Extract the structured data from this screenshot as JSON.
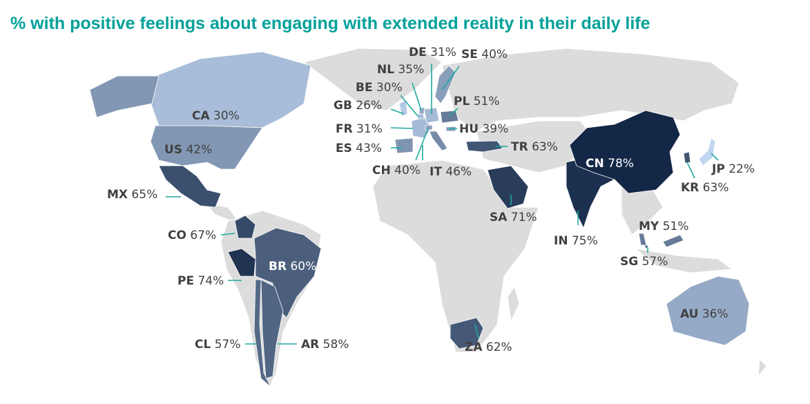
{
  "chart_data": {
    "type": "choropleth",
    "title": "% with positive feelings about engaging with extended reality in their daily life",
    "unit": "%",
    "countries": [
      {
        "code": "CA",
        "value": 30,
        "label": "30%"
      },
      {
        "code": "US",
        "value": 42,
        "label": "42%"
      },
      {
        "code": "MX",
        "value": 65,
        "label": "65%"
      },
      {
        "code": "CO",
        "value": 67,
        "label": "67%"
      },
      {
        "code": "PE",
        "value": 74,
        "label": "74%"
      },
      {
        "code": "BR",
        "value": 60,
        "label": "60%"
      },
      {
        "code": "CL",
        "value": 57,
        "label": "57%"
      },
      {
        "code": "AR",
        "value": 58,
        "label": "58%"
      },
      {
        "code": "GB",
        "value": 26,
        "label": "26%"
      },
      {
        "code": "BE",
        "value": 30,
        "label": "30%"
      },
      {
        "code": "NL",
        "value": 35,
        "label": "35%"
      },
      {
        "code": "DE",
        "value": 31,
        "label": "31%"
      },
      {
        "code": "SE",
        "value": 40,
        "label": "40%"
      },
      {
        "code": "PL",
        "value": 51,
        "label": "51%"
      },
      {
        "code": "FR",
        "value": 31,
        "label": "31%"
      },
      {
        "code": "HU",
        "value": 39,
        "label": "39%"
      },
      {
        "code": "ES",
        "value": 43,
        "label": "43%"
      },
      {
        "code": "CH",
        "value": 40,
        "label": "40%"
      },
      {
        "code": "IT",
        "value": 46,
        "label": "46%"
      },
      {
        "code": "TR",
        "value": 63,
        "label": "63%"
      },
      {
        "code": "SA",
        "value": 71,
        "label": "71%"
      },
      {
        "code": "ZA",
        "value": 62,
        "label": "62%"
      },
      {
        "code": "IN",
        "value": 75,
        "label": "75%"
      },
      {
        "code": "CN",
        "value": 78,
        "label": "78%"
      },
      {
        "code": "KR",
        "value": 63,
        "label": "63%"
      },
      {
        "code": "JP",
        "value": 22,
        "label": "22%"
      },
      {
        "code": "MY",
        "value": 51,
        "label": "51%"
      },
      {
        "code": "SG",
        "value": 57,
        "label": "57%"
      },
      {
        "code": "AU",
        "value": 36,
        "label": "36%"
      }
    ],
    "color_scale": {
      "low": "#c6dcf7",
      "high": "#0d2140",
      "no_data": "#dcdcdc"
    }
  }
}
